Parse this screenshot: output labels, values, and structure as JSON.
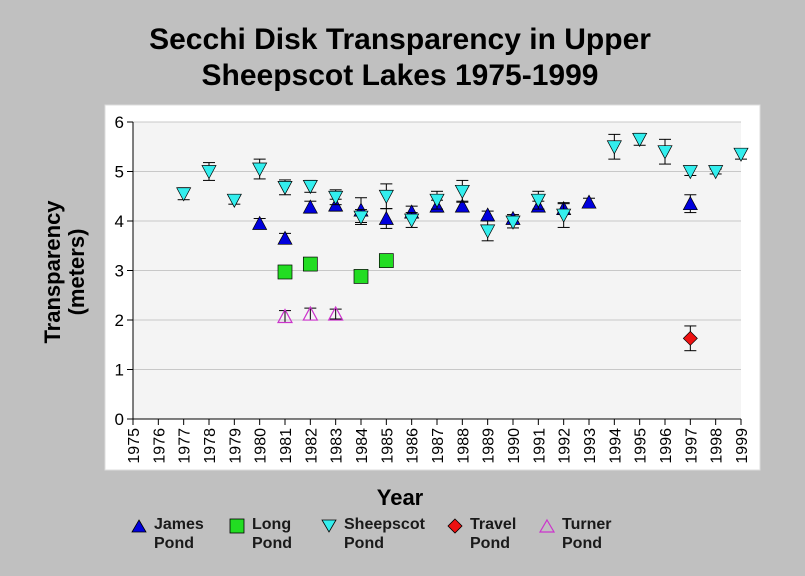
{
  "title": {
    "line1": "Secchi Disk Transparency in Upper",
    "line2": "Sheepscot Lakes 1975-1999"
  },
  "chart_data": {
    "type": "scatter",
    "title": "Secchi Disk Transparency in Upper Sheepscot Lakes 1975-1999",
    "xlabel": "Year",
    "ylabel_lines": [
      "Transparency",
      "(meters)"
    ],
    "ylim": [
      0,
      6
    ],
    "yticks": [
      0,
      1,
      2,
      3,
      4,
      5,
      6
    ],
    "xticks": [
      1975,
      1976,
      1977,
      1978,
      1979,
      1980,
      1981,
      1982,
      1983,
      1984,
      1985,
      1986,
      1987,
      1988,
      1989,
      1990,
      1991,
      1992,
      1993,
      1994,
      1995,
      1996,
      1997,
      1998,
      1999
    ],
    "grid": true,
    "legend_position": "bottom",
    "series": [
      {
        "name_lines": [
          "James",
          "Pond"
        ],
        "marker": "triangle-up",
        "color": "#0000dd",
        "points": [
          {
            "x": 1980,
            "y": 3.95,
            "err": 0.1
          },
          {
            "x": 1981,
            "y": 3.65,
            "err": 0.1
          },
          {
            "x": 1982,
            "y": 4.28,
            "err": 0.12
          },
          {
            "x": 1983,
            "y": 4.32,
            "err": 0.12
          },
          {
            "x": 1984,
            "y": 4.22,
            "err": 0.25
          },
          {
            "x": 1985,
            "y": 4.05,
            "err": 0.2
          },
          {
            "x": 1986,
            "y": 4.18,
            "err": 0.12
          },
          {
            "x": 1987,
            "y": 4.3,
            "err": 0.12
          },
          {
            "x": 1988,
            "y": 4.3,
            "err": 0.1
          },
          {
            "x": 1989,
            "y": 4.12,
            "err": 0.08
          },
          {
            "x": 1990,
            "y": 4.05,
            "err": 0.08
          },
          {
            "x": 1991,
            "y": 4.3,
            "err": 0.1
          },
          {
            "x": 1992,
            "y": 4.25,
            "err": 0.1
          },
          {
            "x": 1993,
            "y": 4.38,
            "err": 0.08
          },
          {
            "x": 1997,
            "y": 4.35,
            "err": 0.18
          }
        ]
      },
      {
        "name_lines": [
          "Long",
          "Pond"
        ],
        "marker": "square",
        "color": "#22dd22",
        "points": [
          {
            "x": 1981,
            "y": 2.97,
            "err": 0
          },
          {
            "x": 1982,
            "y": 3.13,
            "err": 0
          },
          {
            "x": 1984,
            "y": 2.88,
            "err": 0
          },
          {
            "x": 1985,
            "y": 3.2,
            "err": 0
          }
        ]
      },
      {
        "name_lines": [
          "Sheepscot",
          "Pond"
        ],
        "marker": "triangle-down",
        "color": "#33eeee",
        "points": [
          {
            "x": 1977,
            "y": 4.55,
            "err": 0.12
          },
          {
            "x": 1978,
            "y": 5.0,
            "err": 0.18
          },
          {
            "x": 1979,
            "y": 4.42,
            "err": 0.08
          },
          {
            "x": 1980,
            "y": 5.05,
            "err": 0.2
          },
          {
            "x": 1981,
            "y": 4.68,
            "err": 0.15
          },
          {
            "x": 1982,
            "y": 4.7,
            "err": 0.12
          },
          {
            "x": 1983,
            "y": 4.48,
            "err": 0.15
          },
          {
            "x": 1984,
            "y": 4.08,
            "err": 0.15
          },
          {
            "x": 1985,
            "y": 4.5,
            "err": 0.25
          },
          {
            "x": 1986,
            "y": 4.02,
            "err": 0.15
          },
          {
            "x": 1987,
            "y": 4.42,
            "err": 0.18
          },
          {
            "x": 1988,
            "y": 4.6,
            "err": 0.22
          },
          {
            "x": 1989,
            "y": 3.8,
            "err": 0.2
          },
          {
            "x": 1990,
            "y": 3.98,
            "err": 0.12
          },
          {
            "x": 1991,
            "y": 4.42,
            "err": 0.18
          },
          {
            "x": 1992,
            "y": 4.12,
            "err": 0.25
          },
          {
            "x": 1994,
            "y": 5.5,
            "err": 0.25
          },
          {
            "x": 1995,
            "y": 5.65,
            "err": 0.12
          },
          {
            "x": 1996,
            "y": 5.4,
            "err": 0.25
          },
          {
            "x": 1997,
            "y": 5.0,
            "err": 0.08
          },
          {
            "x": 1998,
            "y": 5.0,
            "err": 0.05
          },
          {
            "x": 1999,
            "y": 5.35,
            "err": 0.1
          }
        ]
      },
      {
        "name_lines": [
          "Travel",
          "Pond"
        ],
        "marker": "diamond",
        "color": "#ee1111",
        "points": [
          {
            "x": 1997,
            "y": 1.63,
            "err": 0.25
          }
        ]
      },
      {
        "name_lines": [
          "Turner",
          "Pond"
        ],
        "marker": "triangle-up-open",
        "color": "#cc33cc",
        "points": [
          {
            "x": 1981,
            "y": 2.07,
            "err": 0.12
          },
          {
            "x": 1982,
            "y": 2.12,
            "err": 0.12
          },
          {
            "x": 1983,
            "y": 2.12,
            "err": 0.1
          }
        ]
      }
    ]
  }
}
